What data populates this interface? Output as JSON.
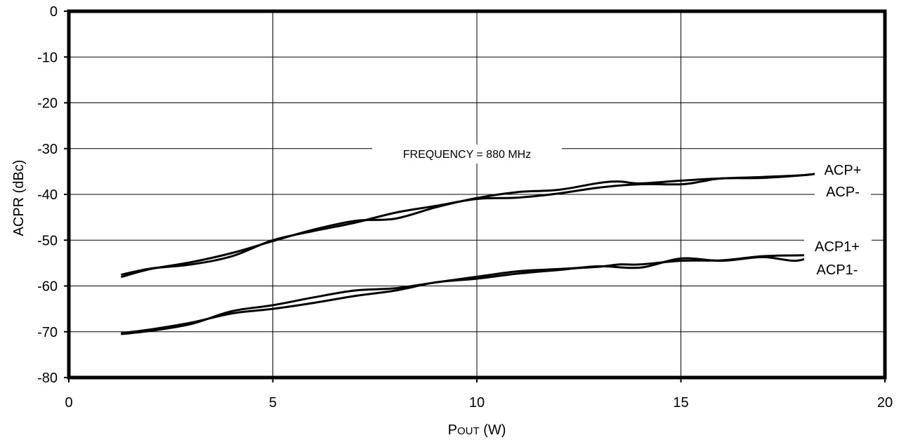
{
  "chart_data": {
    "type": "line",
    "title": "",
    "xlabel_prefix": "P",
    "xlabel_sub": "OUT",
    "xlabel_suffix": " (W)",
    "ylabel": "ACPR  (dBc)",
    "xlim": [
      0,
      20
    ],
    "ylim": [
      -80,
      0
    ],
    "xticks": [
      0,
      5,
      10,
      15,
      20
    ],
    "yticks": [
      0,
      -10,
      -20,
      -30,
      -40,
      -50,
      -60,
      -70,
      -80
    ],
    "grid": true,
    "annotation": "FREQUENCY = 880 MHz",
    "series": [
      {
        "name": "ACP+",
        "x": [
          1.3,
          2,
          3,
          4,
          5,
          6,
          7,
          8,
          9,
          10,
          11,
          12,
          13,
          13.5,
          14,
          15,
          16,
          17,
          18,
          18.3
        ],
        "y": [
          -58,
          -56.3,
          -54.8,
          -52.8,
          -50.2,
          -47.7,
          -45.8,
          -45.3,
          -42.8,
          -40.8,
          -39.5,
          -39,
          -37.5,
          -37.2,
          -37.6,
          -37,
          -36.5,
          -36.2,
          -35.8,
          -35.5
        ]
      },
      {
        "name": "ACP-",
        "x": [
          1.3,
          2,
          3,
          4,
          5,
          6,
          7,
          8,
          9,
          10,
          11,
          12,
          13,
          14,
          15,
          15.5,
          16,
          17,
          18,
          18.3
        ],
        "y": [
          -57.5,
          -56.2,
          -55.3,
          -53.5,
          -50,
          -48,
          -46.2,
          -44,
          -42.5,
          -41,
          -40.7,
          -39.8,
          -38.5,
          -37.8,
          -37.8,
          -37.2,
          -36.5,
          -36.4,
          -35.8,
          -35.5
        ]
      },
      {
        "name": "ACP1+",
        "x": [
          1.3,
          2,
          3,
          4,
          5,
          6,
          7,
          8,
          9,
          10,
          11,
          12,
          13,
          13.5,
          14,
          15,
          16,
          17,
          18,
          18.3
        ],
        "y": [
          -70.5,
          -69.8,
          -68.3,
          -65.5,
          -64.2,
          -62.5,
          -61,
          -60.5,
          -59.2,
          -58,
          -56.8,
          -56.3,
          -55.8,
          -55.3,
          -55.3,
          -54.5,
          -54.4,
          -53.5,
          -53.3,
          -53.4
        ]
      },
      {
        "name": "ACP1-",
        "x": [
          1.3,
          2,
          3,
          4,
          5,
          6,
          7,
          8,
          9,
          10,
          11,
          12,
          13,
          14,
          15,
          16,
          17,
          17.8,
          18.3
        ],
        "y": [
          -70.3,
          -69.5,
          -68,
          -66,
          -65,
          -63.7,
          -62.2,
          -61,
          -59.2,
          -58.4,
          -57.3,
          -56.5,
          -55.7,
          -56,
          -54,
          -54.5,
          -53.7,
          -54.5,
          -53.3
        ]
      }
    ]
  }
}
